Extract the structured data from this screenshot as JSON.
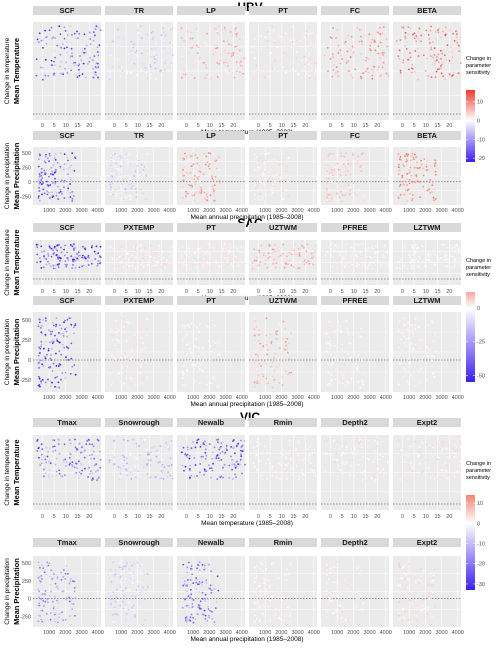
{
  "chart_data": [
    {
      "type": "scatter",
      "title": "HBV",
      "legend_title": "Change in parameter sensitivity",
      "legend_ticks": [
        10,
        0,
        -10,
        -20
      ],
      "legend_range": [
        -22,
        16
      ],
      "rows": [
        {
          "row_label": "Mean Temperature",
          "ylabel": "Change in temperature",
          "xlabel": "Mean temperature (1985–2008)",
          "x_ticks": [
            0,
            5,
            10,
            15,
            20
          ],
          "xlim": [
            -4,
            25
          ],
          "panels": [
            {
              "name": "SCF",
              "bias": -0.8,
              "intensity": 0.9
            },
            {
              "name": "TR",
              "bias": -0.4,
              "intensity": 0.4
            },
            {
              "name": "LP",
              "bias": 0.6,
              "intensity": 0.6
            },
            {
              "name": "PT",
              "bias": 0.3,
              "intensity": 0.4
            },
            {
              "name": "FC",
              "bias": 0.7,
              "intensity": 0.7
            },
            {
              "name": "BETA",
              "bias": 0.8,
              "intensity": 0.85
            }
          ]
        },
        {
          "row_label": "Mean Precipitation",
          "ylabel": "Change in precipitation",
          "xlabel": "Mean annual precipitation (1985–2008)",
          "x_ticks": [
            1000,
            2000,
            3000,
            4000
          ],
          "xlim": [
            0,
            4200
          ],
          "y_ticks": [
            500,
            250,
            0,
            -250
          ],
          "ylim": [
            -400,
            600
          ],
          "panels": [
            {
              "name": "SCF",
              "bias": -0.8,
              "intensity": 0.9
            },
            {
              "name": "TR",
              "bias": -0.4,
              "intensity": 0.4
            },
            {
              "name": "LP",
              "bias": 0.6,
              "intensity": 0.7
            },
            {
              "name": "PT",
              "bias": 0.2,
              "intensity": 0.4
            },
            {
              "name": "FC",
              "bias": 0.5,
              "intensity": 0.5
            },
            {
              "name": "BETA",
              "bias": 0.7,
              "intensity": 0.75
            }
          ]
        }
      ]
    },
    {
      "type": "scatter",
      "title": "SAC",
      "legend_title": "Change in parameter sensitivity",
      "legend_ticks": [
        0,
        -25,
        -50
      ],
      "legend_range": [
        -55,
        12
      ],
      "rows": [
        {
          "row_label": "Mean Temperature",
          "ylabel": "Change in temperature",
          "xlabel": "Mean temperature (1985–2008)",
          "x_ticks": [
            0,
            5,
            10,
            15,
            20
          ],
          "xlim": [
            -4,
            25
          ],
          "panels": [
            {
              "name": "SCF",
              "bias": -0.9,
              "intensity": 0.95
            },
            {
              "name": "PXTEMP",
              "bias": 0.3,
              "intensity": 0.35
            },
            {
              "name": "PT",
              "bias": 0.3,
              "intensity": 0.3
            },
            {
              "name": "UZTWM",
              "bias": 0.6,
              "intensity": 0.6
            },
            {
              "name": "PFREE",
              "bias": 0.2,
              "intensity": 0.25
            },
            {
              "name": "LZTWM",
              "bias": 0.2,
              "intensity": 0.25
            }
          ]
        },
        {
          "row_label": "Mean Precipitation",
          "ylabel": "Change in precipitation",
          "xlabel": "Mean annual precipitation (1985–2008)",
          "x_ticks": [
            1000,
            2000,
            3000,
            4000
          ],
          "xlim": [
            0,
            4200
          ],
          "y_ticks": [
            500,
            250,
            0,
            -250
          ],
          "ylim": [
            -400,
            600
          ],
          "panels": [
            {
              "name": "SCF",
              "bias": -0.9,
              "intensity": 0.95
            },
            {
              "name": "PXTEMP",
              "bias": 0.3,
              "intensity": 0.3
            },
            {
              "name": "PT",
              "bias": 0.2,
              "intensity": 0.25
            },
            {
              "name": "UZTWM",
              "bias": 0.6,
              "intensity": 0.6
            },
            {
              "name": "PFREE",
              "bias": 0.2,
              "intensity": 0.25
            },
            {
              "name": "LZTWM",
              "bias": 0.2,
              "intensity": 0.25
            }
          ]
        }
      ]
    },
    {
      "type": "scatter",
      "title": "VIC",
      "legend_title": "Change in parameter sensitivity",
      "legend_ticks": [
        10,
        0,
        -10,
        -20,
        -30
      ],
      "legend_range": [
        -33,
        14
      ],
      "rows": [
        {
          "row_label": "Mean Temperature",
          "ylabel": "Change in temperature",
          "xlabel": "Mean temperature (1985–2008)",
          "x_ticks": [
            0,
            5,
            10,
            15,
            20
          ],
          "xlim": [
            -4,
            25
          ],
          "panels": [
            {
              "name": "Tmax",
              "bias": -0.8,
              "intensity": 0.85
            },
            {
              "name": "Snowrough",
              "bias": -0.5,
              "intensity": 0.5
            },
            {
              "name": "Newalb",
              "bias": -0.9,
              "intensity": 0.9
            },
            {
              "name": "Rmin",
              "bias": 0.2,
              "intensity": 0.25
            },
            {
              "name": "Depth2",
              "bias": 0.3,
              "intensity": 0.35
            },
            {
              "name": "Expt2",
              "bias": 0.3,
              "intensity": 0.35
            }
          ]
        },
        {
          "row_label": "Mean Precipitation",
          "ylabel": "Change in precipitation",
          "xlabel": "Mean annual precipitation (1985–2008)",
          "x_ticks": [
            1000,
            2000,
            3000,
            4000
          ],
          "xlim": [
            0,
            4200
          ],
          "y_ticks": [
            500,
            250,
            0,
            -250
          ],
          "ylim": [
            -400,
            600
          ],
          "panels": [
            {
              "name": "Tmax",
              "bias": -0.7,
              "intensity": 0.7
            },
            {
              "name": "Snowrough",
              "bias": -0.4,
              "intensity": 0.4
            },
            {
              "name": "Newalb",
              "bias": -0.8,
              "intensity": 0.75
            },
            {
              "name": "Rmin",
              "bias": 0.2,
              "intensity": 0.25
            },
            {
              "name": "Depth2",
              "bias": 0.3,
              "intensity": 0.3
            },
            {
              "name": "Expt2",
              "bias": 0.4,
              "intensity": 0.4
            }
          ]
        }
      ]
    }
  ]
}
